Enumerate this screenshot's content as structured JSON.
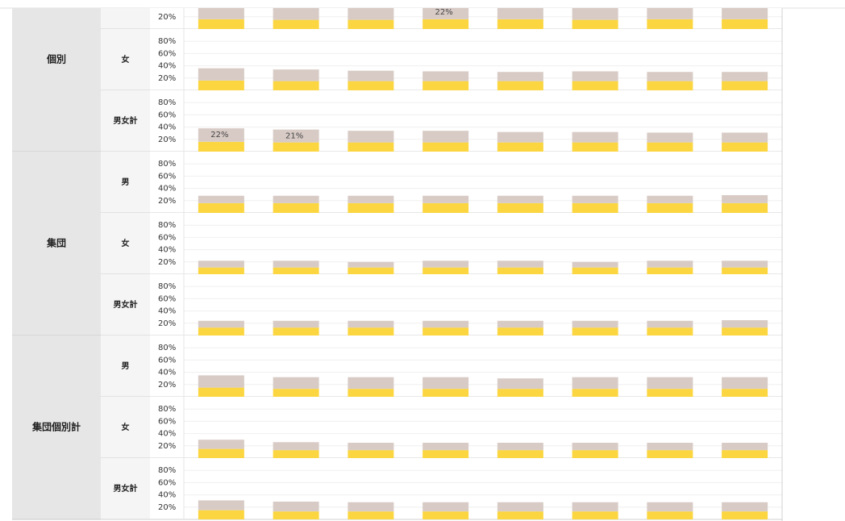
{
  "ylim": [
    0,
    100
  ],
  "yticks": [
    {
      "value": 20,
      "label": "20%"
    },
    {
      "value": 40,
      "label": "40%"
    },
    {
      "value": 60,
      "label": "60%"
    },
    {
      "value": 80,
      "label": "80%"
    }
  ],
  "groups": [
    {
      "label": "個別",
      "rows": [
        {
          "series": [
            {
              "color": "#fbd641",
              "values": [
                16,
                15,
                15,
                16,
                16,
                15,
                16,
                16
              ]
            },
            {
              "color": "#d8cbc6",
              "values": [
                22,
                22,
                22,
                22,
                22,
                22,
                22,
                22
              ],
              "value_labels": [
                null,
                null,
                null,
                "22%",
                null,
                null,
                null,
                null
              ]
            }
          ]
        },
        {
          "sex": "女",
          "series": [
            {
              "color": "#fbd641",
              "values": [
                16,
                15,
                15,
                15,
                15,
                15,
                15,
                15
              ]
            },
            {
              "color": "#d8cbc6",
              "values": [
                20,
                19,
                17,
                16,
                15,
                16,
                15,
                15
              ]
            }
          ]
        },
        {
          "sex": "男女計",
          "series": [
            {
              "color": "#fbd641",
              "values": [
                16,
                15,
                15,
                15,
                15,
                15,
                15,
                15
              ]
            },
            {
              "color": "#d8cbc6",
              "values": [
                22,
                21,
                19,
                19,
                17,
                17,
                16,
                16
              ],
              "value_labels": [
                "22%",
                "21%",
                null,
                null,
                null,
                null,
                null,
                null
              ]
            }
          ]
        }
      ]
    },
    {
      "label": "集団",
      "rows": [
        {
          "sex": "男",
          "series": [
            {
              "color": "#fbd641",
              "values": [
                16,
                16,
                16,
                16,
                16,
                16,
                16,
                16
              ]
            },
            {
              "color": "#d8cbc6",
              "values": [
                12,
                12,
                12,
                12,
                12,
                12,
                12,
                13
              ]
            }
          ]
        },
        {
          "sex": "女",
          "series": [
            {
              "color": "#fbd641",
              "values": [
                11,
                11,
                11,
                11,
                11,
                11,
                11,
                11
              ]
            },
            {
              "color": "#d8cbc6",
              "values": [
                11,
                11,
                9,
                11,
                11,
                9,
                11,
                11
              ]
            }
          ]
        },
        {
          "sex": "男女計",
          "series": [
            {
              "color": "#fbd641",
              "values": [
                13,
                13,
                13,
                13,
                13,
                13,
                13,
                13
              ]
            },
            {
              "color": "#d8cbc6",
              "values": [
                11,
                11,
                11,
                11,
                11,
                11,
                11,
                12
              ]
            }
          ]
        }
      ]
    },
    {
      "label": "集団個別計",
      "rows": [
        {
          "sex": "男",
          "series": [
            {
              "color": "#fbd641",
              "values": [
                15,
                13,
                13,
                13,
                13,
                13,
                13,
                13
              ]
            },
            {
              "color": "#d8cbc6",
              "values": [
                20,
                19,
                19,
                19,
                17,
                19,
                19,
                19
              ]
            }
          ]
        },
        {
          "sex": "女",
          "series": [
            {
              "color": "#fbd641",
              "values": [
                15,
                13,
                13,
                13,
                13,
                13,
                13,
                13
              ]
            },
            {
              "color": "#d8cbc6",
              "values": [
                15,
                13,
                12,
                12,
                12,
                12,
                12,
                12
              ]
            }
          ]
        },
        {
          "sex": "男女計",
          "series": [
            {
              "color": "#fbd641",
              "values": [
                15,
                13,
                13,
                13,
                13,
                13,
                13,
                13
              ]
            },
            {
              "color": "#d8cbc6",
              "values": [
                16,
                16,
                15,
                15,
                15,
                15,
                15,
                15
              ]
            }
          ]
        }
      ]
    }
  ]
}
